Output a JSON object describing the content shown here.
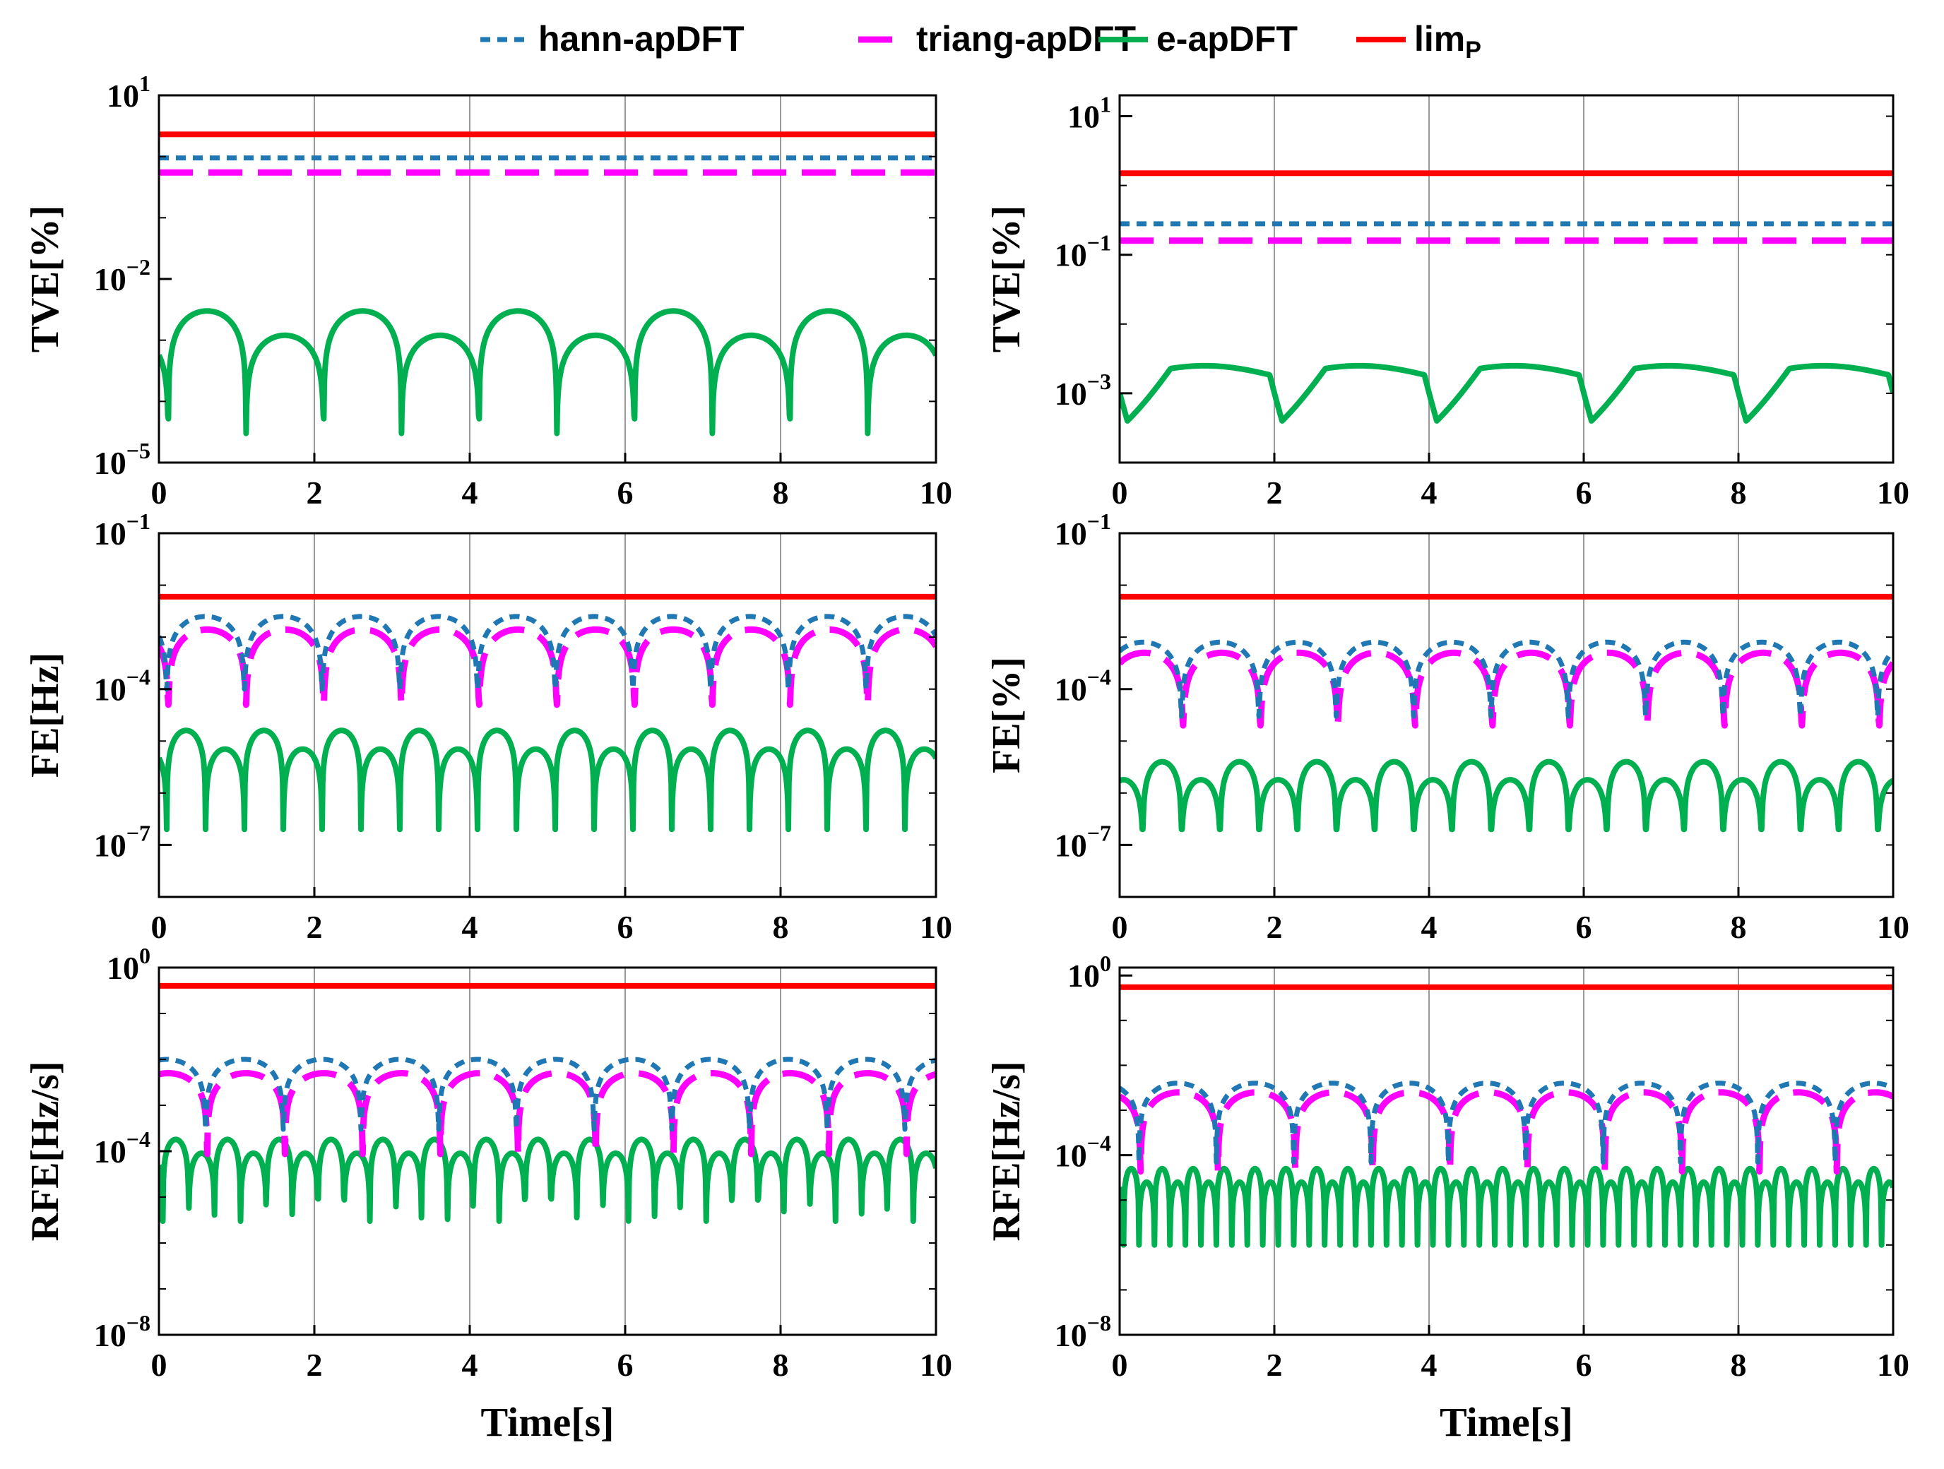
{
  "colors": {
    "hann": "#1f77b4",
    "triang": "#ff00ff",
    "e": "#00b050",
    "lim": "#ff0000",
    "grid": "#9a9a9a",
    "axis": "#000000"
  },
  "legend": [
    {
      "key": "hann",
      "label": "hann-apDFT",
      "dash": "short"
    },
    {
      "key": "triang",
      "label": "triang-apDFT",
      "dash": "long"
    },
    {
      "key": "e",
      "label": "e-apDFT",
      "dash": "solid"
    },
    {
      "key": "lim",
      "label": "lim",
      "sub": "P",
      "dash": "solid"
    }
  ],
  "chart_data": [
    {
      "id": "a",
      "type": "line",
      "ylabel": "TVE[%]",
      "xlabel": "",
      "yscale": "log",
      "ylim": [
        1e-05,
        10
      ],
      "yticks": [
        {
          "b": "10",
          "e": "1"
        },
        {
          "b": "10",
          "e": "−2"
        },
        {
          "b": "10",
          "e": "−5"
        }
      ],
      "xticks": [
        "0",
        "2",
        "4",
        "6",
        "8",
        "10"
      ],
      "xlim": [
        0,
        10
      ],
      "series": [
        {
          "name": "lim",
          "kind": "flat",
          "value": 2.3
        },
        {
          "name": "hann",
          "kind": "flat",
          "value": 0.95
        },
        {
          "name": "triang",
          "kind": "flat",
          "value": 0.55
        },
        {
          "name": "e",
          "kind": "arch",
          "period": 1.0,
          "phase": 0.12,
          "peaks": [
            0.003,
            0.0012
          ],
          "dip": 3e-05
        }
      ]
    },
    {
      "id": "b",
      "type": "line",
      "ylabel": "TVE[%]",
      "xlabel": "",
      "yscale": "log",
      "ylim": [
        0.0001,
        20
      ],
      "yticks": [
        {
          "b": "10",
          "e": "1"
        },
        {
          "b": "10",
          "e": "−1"
        },
        {
          "b": "10",
          "e": "−3"
        }
      ],
      "xticks": [
        "0",
        "2",
        "4",
        "6",
        "8",
        "10"
      ],
      "xlim": [
        0,
        10
      ],
      "series": [
        {
          "name": "lim",
          "kind": "flat",
          "value": 1.5
        },
        {
          "name": "hann",
          "kind": "flat",
          "value": 0.28
        },
        {
          "name": "triang",
          "kind": "flat",
          "value": 0.16
        },
        {
          "name": "e",
          "kind": "plateau",
          "period": 2.0,
          "phase": 0.1,
          "peak": 0.0025,
          "dip": 0.0004
        }
      ]
    },
    {
      "id": "c",
      "type": "line",
      "ylabel": "FE[Hz]",
      "xlabel": "",
      "yscale": "log",
      "ylim": [
        1e-08,
        0.1
      ],
      "yticks": [
        {
          "b": "10",
          "e": "−1"
        },
        {
          "b": "10",
          "e": "−4"
        },
        {
          "b": "10",
          "e": "−7"
        }
      ],
      "xticks": [
        "0",
        "2",
        "4",
        "6",
        "8",
        "10"
      ],
      "xlim": [
        0,
        10
      ],
      "series": [
        {
          "name": "lim",
          "kind": "flat",
          "value": 0.006
        },
        {
          "name": "hann",
          "kind": "arch",
          "period": 1.0,
          "phase": 0.1,
          "peaks": [
            0.0025
          ],
          "dip": 0.0001
        },
        {
          "name": "triang",
          "kind": "arch",
          "period": 1.0,
          "phase": 0.12,
          "peaks": [
            0.0014
          ],
          "dip": 5e-05
        },
        {
          "name": "e",
          "kind": "arch",
          "period": 0.5,
          "phase": 0.1,
          "peaks": [
            1.6e-05,
            7e-06
          ],
          "dip": 2e-07
        }
      ]
    },
    {
      "id": "d",
      "type": "line",
      "ylabel": "FE[%]",
      "xlabel": "",
      "yscale": "log",
      "ylim": [
        1e-08,
        0.1
      ],
      "yticks": [
        {
          "b": "10",
          "e": "−1"
        },
        {
          "b": "10",
          "e": "−4"
        },
        {
          "b": "10",
          "e": "−7"
        }
      ],
      "xticks": [
        "0",
        "2",
        "4",
        "6",
        "8",
        "10"
      ],
      "xlim": [
        0,
        10
      ],
      "series": [
        {
          "name": "lim",
          "kind": "flat",
          "value": 0.006
        },
        {
          "name": "hann",
          "kind": "arch",
          "period": 1.0,
          "phase": 0.8,
          "peaks": [
            0.0008
          ],
          "dip": 3e-05
        },
        {
          "name": "triang",
          "kind": "arch",
          "period": 1.0,
          "phase": 0.82,
          "peaks": [
            0.0005
          ],
          "dip": 2e-05
        },
        {
          "name": "e",
          "kind": "arch",
          "period": 0.5,
          "phase": 0.3,
          "peaks": [
            4e-06,
            1.8e-06
          ],
          "dip": 2e-07
        }
      ]
    },
    {
      "id": "e",
      "type": "line",
      "ylabel": "RFE[Hz/s]",
      "xlabel": "Time[s]",
      "yscale": "log",
      "ylim": [
        1e-08,
        1
      ],
      "yticks": [
        {
          "b": "10",
          "e": "0"
        },
        {
          "b": "10",
          "e": "−4"
        },
        {
          "b": "10",
          "e": "−8"
        }
      ],
      "xticks": [
        "0",
        "2",
        "4",
        "6",
        "8",
        "10"
      ],
      "xlim": [
        0,
        10
      ],
      "series": [
        {
          "name": "lim",
          "kind": "flat",
          "value": 0.4
        },
        {
          "name": "hann",
          "kind": "arch",
          "period": 1.0,
          "phase": 0.6,
          "peaks": [
            0.01
          ],
          "dip": 0.0003
        },
        {
          "name": "triang",
          "kind": "arch",
          "period": 1.0,
          "phase": 0.62,
          "peaks": [
            0.005
          ],
          "dip": 3e-05
        },
        {
          "name": "e",
          "kind": "arch",
          "period": 0.333,
          "phase": 0.05,
          "peaks": [
            0.00018,
            9e-05
          ],
          "dip": 3e-06
        }
      ]
    },
    {
      "id": "f",
      "type": "line",
      "ylabel": "RFE[Hz/s]",
      "xlabel": "Time[s]",
      "yscale": "log",
      "ylim": [
        1e-08,
        1.5
      ],
      "yticks": [
        {
          "b": "10",
          "e": "0"
        },
        {
          "b": "10",
          "e": "−4"
        },
        {
          "b": "10",
          "e": "−8"
        }
      ],
      "xticks": [
        "0",
        "2",
        "4",
        "6",
        "8",
        "10"
      ],
      "xlim": [
        0,
        10
      ],
      "series": [
        {
          "name": "lim",
          "kind": "flat",
          "value": 0.55
        },
        {
          "name": "hann",
          "kind": "arch",
          "period": 1.0,
          "phase": 0.25,
          "peaks": [
            0.004
          ],
          "dip": 7e-05
        },
        {
          "name": "triang",
          "kind": "arch",
          "period": 1.0,
          "phase": 0.27,
          "peaks": [
            0.0025
          ],
          "dip": 3e-05
        },
        {
          "name": "e",
          "kind": "arch",
          "period": 0.2,
          "phase": 0.05,
          "peaks": [
            5e-05,
            2.5e-05
          ],
          "dip": 1e-06
        }
      ]
    }
  ]
}
